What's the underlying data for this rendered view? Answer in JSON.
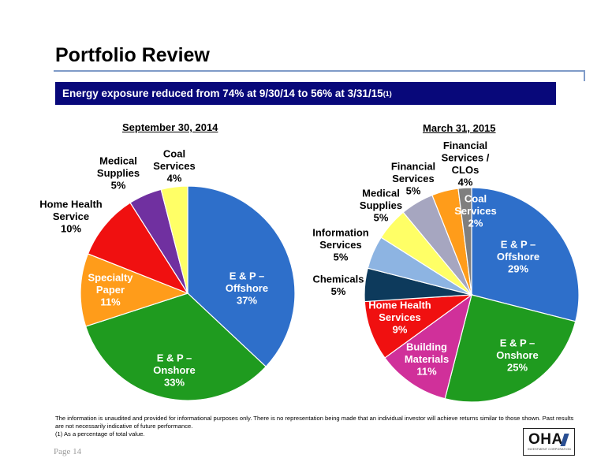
{
  "page": {
    "title": "Portfolio Review",
    "banner": {
      "text": "Energy exposure reduced from 74% at 9/30/14 to 56% at 3/31/15",
      "sup": "(1)"
    },
    "footnotes": [
      "The information is unaudited and provided for informational purposes only. There is no representation being made that an individual investor will achieve returns similar to those shown. Past results are not necessarily indicative of future performance.",
      "(1) As a percentage of total value."
    ],
    "page_number": "Page 14",
    "logo": {
      "mark": "OHA",
      "subtitle": "INVESTMENT CORPORATION"
    }
  },
  "chart_data": [
    {
      "type": "pie",
      "title": "September 30, 2014",
      "slices": [
        {
          "label": [
            "E & P –",
            "Offshore",
            "37%"
          ],
          "value": 37,
          "color": "#2e6fca",
          "label_color": "#ffffff"
        },
        {
          "label": [
            "E & P –",
            "Onshore",
            "33%"
          ],
          "value": 33,
          "color": "#1f9b1f",
          "label_color": "#ffffff"
        },
        {
          "label": [
            "Specialty",
            "Paper",
            "11%"
          ],
          "value": 11,
          "color": "#ff9c1a",
          "label_color": "#ffffff"
        },
        {
          "label": [
            "Home Health",
            "Service",
            "10%"
          ],
          "value": 10,
          "color": "#f01010",
          "label_color": "#000000"
        },
        {
          "label": [
            "Medical",
            "Supplies",
            "5%"
          ],
          "value": 5,
          "color": "#7030a0",
          "label_color": "#000000"
        },
        {
          "label": [
            "Coal",
            "Services",
            "4%"
          ],
          "value": 4,
          "color": "#ffff66",
          "label_color": "#000000"
        }
      ]
    },
    {
      "type": "pie",
      "title": "March 31, 2015",
      "slices": [
        {
          "label": [
            "E & P –",
            "Offshore",
            "29%"
          ],
          "value": 29,
          "color": "#2e6fca",
          "label_color": "#ffffff"
        },
        {
          "label": [
            "E & P –",
            "Onshore",
            "25%"
          ],
          "value": 25,
          "color": "#1f9b1f",
          "label_color": "#ffffff"
        },
        {
          "label": [
            "Building",
            "Materials",
            "11%"
          ],
          "value": 11,
          "color": "#d0309a",
          "label_color": "#ffffff"
        },
        {
          "label": [
            "Home Health",
            "Services",
            "9%"
          ],
          "value": 9,
          "color": "#f01010",
          "label_color": "#ffffff"
        },
        {
          "label": [
            "Chemicals",
            "5%"
          ],
          "value": 5,
          "color": "#0d3a5c",
          "label_color": "#000000"
        },
        {
          "label": [
            "Information",
            "Services",
            "5%"
          ],
          "value": 5,
          "color": "#8db4e2",
          "label_color": "#000000"
        },
        {
          "label": [
            "Medical",
            "Supplies",
            "5%"
          ],
          "value": 5,
          "color": "#ffff66",
          "label_color": "#000000"
        },
        {
          "label": [
            "Financial",
            "Services",
            "5%"
          ],
          "value": 5,
          "color": "#a6a6c0",
          "label_color": "#000000"
        },
        {
          "label": [
            "Financial",
            "Services /",
            "CLOs",
            "4%"
          ],
          "value": 4,
          "color": "#ff9c1a",
          "label_color": "#000000"
        },
        {
          "label": [
            "Coal",
            "Services",
            "2%"
          ],
          "value": 2,
          "color": "#7f7f7f",
          "label_color": "#ffffff"
        }
      ]
    }
  ]
}
